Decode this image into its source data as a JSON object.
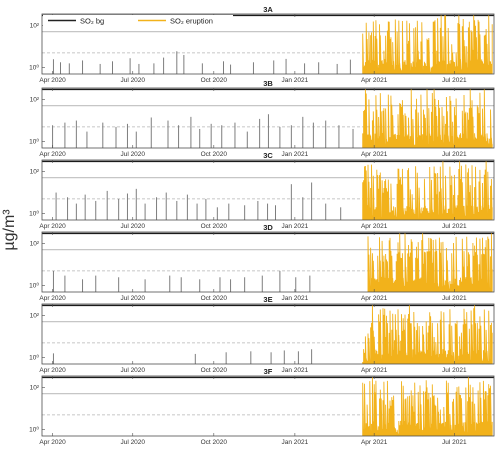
{
  "figure": {
    "ylabel": "µg/m³",
    "legend_location": "top-left of first panel",
    "colors": {
      "background": "#7d7d7d",
      "eruption": "#f2b21b",
      "limit_line": "#1a1a1a",
      "grid_line": "#8c8c8c",
      "dashed_line": "#b5b5b5"
    }
  },
  "chart_data": [
    {
      "type": "line",
      "title": "3A",
      "x_range": [
        "2020-03-20",
        "2021-08-15"
      ],
      "y_scale": "log",
      "ylim": [
        0.5,
        350
      ],
      "yticks": [
        "10⁰",
        "10²"
      ],
      "xticks": [
        "Apr 2020",
        "Jul 2020",
        "Oct 2020",
        "Jan 2021",
        "Apr 2021",
        "Jul 2021"
      ],
      "reference_lines": [
        300,
        50,
        5
      ],
      "series": [
        {
          "name": "SO₂ bg",
          "color": "#7d7d7d",
          "spikes": [
            [
              "2020-04-02",
              2.5
            ],
            [
              "2020-04-10",
              1.8
            ],
            [
              "2020-04-20",
              1.6
            ],
            [
              "2020-05-05",
              2.2
            ],
            [
              "2020-05-25",
              1.5
            ],
            [
              "2020-06-08",
              2.0
            ],
            [
              "2020-06-28",
              2.8
            ],
            [
              "2020-07-08",
              1.5
            ],
            [
              "2020-07-25",
              1.6
            ],
            [
              "2020-08-05",
              3.0
            ],
            [
              "2020-08-20",
              6.0
            ],
            [
              "2020-08-28",
              4.0
            ],
            [
              "2020-09-18",
              1.6
            ],
            [
              "2020-10-12",
              2.0
            ],
            [
              "2020-10-20",
              1.4
            ],
            [
              "2020-11-15",
              1.8
            ],
            [
              "2020-12-08",
              2.2
            ],
            [
              "2020-12-22",
              2.6
            ],
            [
              "2021-01-12",
              1.6
            ],
            [
              "2021-01-28",
              1.8
            ],
            [
              "2021-02-18",
              1.5
            ],
            [
              "2021-03-05",
              2.4
            ]
          ]
        },
        {
          "name": "SO₂ eruption",
          "color": "#f2b21b",
          "start": "2021-03-19",
          "end": "2021-08-13",
          "seed": 11
        }
      ]
    },
    {
      "type": "line",
      "title": "3B",
      "x_range": [
        "2020-03-20",
        "2021-08-15"
      ],
      "y_scale": "log",
      "ylim": [
        0.5,
        350
      ],
      "yticks": [
        "10⁰",
        "10²"
      ],
      "xticks": [
        "Apr 2020",
        "Jul 2020",
        "Oct 2020",
        "Jan 2021",
        "Apr 2021",
        "Jul 2021"
      ],
      "reference_lines": [
        300,
        50,
        5
      ],
      "series": [
        {
          "name": "SO₂ bg",
          "color": "#7d7d7d",
          "spikes": [
            [
              "2020-04-01",
              6.0
            ],
            [
              "2020-04-15",
              8.0
            ],
            [
              "2020-04-28",
              10.0
            ],
            [
              "2020-05-10",
              3.0
            ],
            [
              "2020-05-28",
              8.0
            ],
            [
              "2020-06-12",
              5.0
            ],
            [
              "2020-06-25",
              7.0
            ],
            [
              "2020-07-05",
              3.0
            ],
            [
              "2020-07-22",
              14.0
            ],
            [
              "2020-08-10",
              10.0
            ],
            [
              "2020-08-22",
              6.0
            ],
            [
              "2020-09-05",
              15.0
            ],
            [
              "2020-09-15",
              4.0
            ],
            [
              "2020-09-28",
              7.0
            ],
            [
              "2020-10-10",
              6.0
            ],
            [
              "2020-10-25",
              8.0
            ],
            [
              "2020-11-08",
              3.0
            ],
            [
              "2020-11-22",
              12.0
            ],
            [
              "2020-12-02",
              20.0
            ],
            [
              "2020-12-15",
              5.0
            ],
            [
              "2020-12-28",
              6.0
            ],
            [
              "2021-01-10",
              15.0
            ],
            [
              "2021-01-22",
              8.0
            ],
            [
              "2021-02-05",
              10.0
            ],
            [
              "2021-02-20",
              6.0
            ],
            [
              "2021-03-08",
              4.0
            ]
          ]
        },
        {
          "name": "SO₂ eruption",
          "color": "#f2b21b",
          "start": "2021-03-19",
          "end": "2021-08-13",
          "seed": 23
        }
      ]
    },
    {
      "type": "line",
      "title": "3C",
      "x_range": [
        "2020-03-20",
        "2021-08-15"
      ],
      "y_scale": "log",
      "ylim": [
        0.5,
        350
      ],
      "yticks": [
        "10⁰",
        "10²"
      ],
      "xticks": [
        "Apr 2020",
        "Jul 2020",
        "Oct 2020",
        "Jan 2021",
        "Apr 2021",
        "Jul 2021"
      ],
      "reference_lines": [
        300,
        50,
        5
      ],
      "series": [
        {
          "name": "SO₂ bg",
          "color": "#7d7d7d",
          "spikes": [
            [
              "2020-04-05",
              10.0
            ],
            [
              "2020-04-18",
              6.0
            ],
            [
              "2020-04-28",
              3.0
            ],
            [
              "2020-05-08",
              8.0
            ],
            [
              "2020-05-20",
              4.0
            ],
            [
              "2020-06-02",
              12.0
            ],
            [
              "2020-06-15",
              5.0
            ],
            [
              "2020-06-25",
              9.0
            ],
            [
              "2020-07-05",
              15.0
            ],
            [
              "2020-07-15",
              3.0
            ],
            [
              "2020-07-28",
              6.0
            ],
            [
              "2020-08-08",
              10.0
            ],
            [
              "2020-08-20",
              4.0
            ],
            [
              "2020-09-01",
              8.0
            ],
            [
              "2020-09-12",
              3.0
            ],
            [
              "2020-09-22",
              5.0
            ],
            [
              "2020-10-05",
              2.0
            ],
            [
              "2020-10-18",
              3.0
            ],
            [
              "2020-11-05",
              2.5
            ],
            [
              "2020-11-20",
              4.0
            ],
            [
              "2020-12-01",
              3.0
            ],
            [
              "2020-12-10",
              2.5
            ],
            [
              "2020-12-28",
              25.0
            ],
            [
              "2021-01-10",
              6.0
            ],
            [
              "2021-01-20",
              30.0
            ],
            [
              "2021-02-05",
              3.0
            ],
            [
              "2021-02-22",
              2.0
            ]
          ]
        },
        {
          "name": "SO₂ eruption",
          "color": "#f2b21b",
          "start": "2021-03-19",
          "end": "2021-08-13",
          "seed": 37
        }
      ]
    },
    {
      "type": "line",
      "title": "3D",
      "x_range": [
        "2020-03-20",
        "2021-08-15"
      ],
      "y_scale": "log",
      "ylim": [
        0.5,
        350
      ],
      "yticks": [
        "10⁰",
        "10²"
      ],
      "xticks": [
        "Apr 2020",
        "Jul 2020",
        "Oct 2020",
        "Jan 2021",
        "Apr 2021",
        "Jul 2021"
      ],
      "reference_lines": [
        300,
        50,
        5
      ],
      "series": [
        {
          "name": "SO₂ bg",
          "color": "#7d7d7d",
          "spikes": [
            [
              "2020-04-02",
              5.0
            ],
            [
              "2020-04-15",
              3.0
            ],
            [
              "2020-05-05",
              2.0
            ],
            [
              "2020-05-20",
              3.0
            ],
            [
              "2020-06-15",
              2.5
            ],
            [
              "2020-07-15",
              2.0
            ],
            [
              "2020-08-12",
              3.0
            ],
            [
              "2020-08-25",
              2.5
            ],
            [
              "2020-09-15",
              2.0
            ],
            [
              "2020-10-08",
              2.5
            ],
            [
              "2020-10-20",
              2.0
            ],
            [
              "2020-11-05",
              2.5
            ],
            [
              "2020-11-25",
              3.0
            ],
            [
              "2020-12-15",
              5.0
            ],
            [
              "2021-01-02",
              2.5
            ],
            [
              "2021-01-18",
              3.0
            ]
          ]
        },
        {
          "name": "SO₂ eruption",
          "color": "#f2b21b",
          "start": "2021-03-25",
          "end": "2021-08-13",
          "seed": 41
        }
      ]
    },
    {
      "type": "line",
      "title": "3E",
      "x_range": [
        "2020-03-20",
        "2021-08-15"
      ],
      "y_scale": "log",
      "ylim": [
        0.5,
        350
      ],
      "yticks": [
        "10⁰",
        "10²"
      ],
      "xticks": [
        "Apr 2020",
        "Jul 2020",
        "Oct 2020",
        "Jan 2021",
        "Apr 2021",
        "Jul 2021"
      ],
      "reference_lines": [
        300,
        50,
        5
      ],
      "series": [
        {
          "name": "SO₂ bg",
          "color": "#7d7d7d",
          "spikes": [
            [
              "2020-04-02",
              1.6
            ],
            [
              "2020-09-10",
              1.5
            ],
            [
              "2020-10-15",
              1.8
            ],
            [
              "2020-11-12",
              2.0
            ],
            [
              "2020-12-05",
              1.8
            ],
            [
              "2020-12-20",
              2.2
            ],
            [
              "2021-01-05",
              2.0
            ],
            [
              "2021-01-20",
              2.5
            ]
          ]
        },
        {
          "name": "SO₂ eruption",
          "color": "#f2b21b",
          "start": "2021-03-19",
          "end": "2021-08-13",
          "seed": 53
        }
      ]
    },
    {
      "type": "line",
      "title": "3F",
      "x_range": [
        "2020-03-20",
        "2021-08-15"
      ],
      "y_scale": "log",
      "ylim": [
        0.5,
        350
      ],
      "yticks": [
        "10⁰",
        "10²"
      ],
      "xticks": [
        "Apr 2020",
        "Jul 2020",
        "Oct 2020",
        "Jan 2021",
        "Apr 2021",
        "Jul 2021"
      ],
      "reference_lines": [
        300,
        50,
        5
      ],
      "series": [
        {
          "name": "SO₂ eruption",
          "color": "#f2b21b",
          "start": "2021-03-19",
          "end": "2021-08-13",
          "seed": 67
        }
      ]
    }
  ]
}
